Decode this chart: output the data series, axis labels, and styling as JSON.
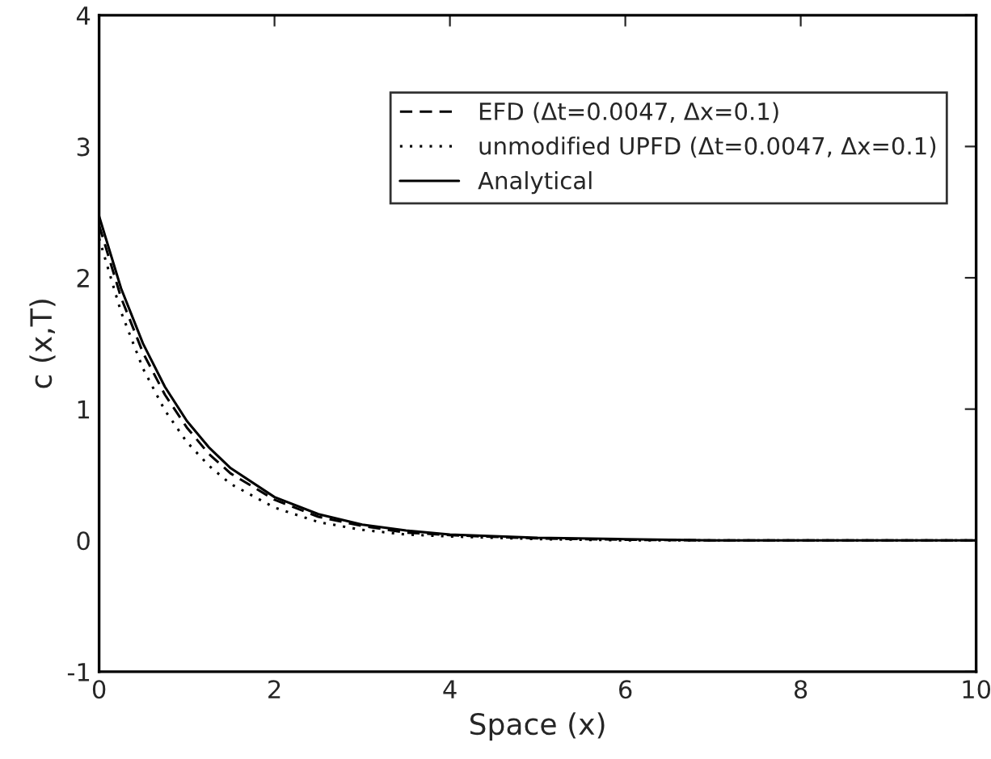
{
  "chart_data": {
    "type": "line",
    "xlabel": "Space (x)",
    "ylabel": "c (x,T)",
    "xlim": [
      0,
      10
    ],
    "ylim": [
      -1,
      4
    ],
    "xticks": [
      0,
      2,
      4,
      6,
      8,
      10
    ],
    "yticks": [
      -1,
      0,
      1,
      2,
      3,
      4
    ],
    "grid": false,
    "legend": "top right",
    "marker": "none",
    "x": [
      0,
      0.25,
      0.5,
      0.75,
      1,
      1.25,
      1.5,
      2,
      2.5,
      3,
      3.5,
      4,
      5,
      6,
      7,
      10
    ],
    "series": [
      {
        "name": "EFD (Δt=0.0047, Δx=0.1)",
        "color": "#000000",
        "line_style": "dashed",
        "values": [
          2.4,
          1.85,
          1.43,
          1.11,
          0.86,
          0.66,
          0.51,
          0.31,
          0.18,
          0.11,
          0.06,
          0.04,
          0.015,
          0.005,
          0,
          0
        ]
      },
      {
        "name": "unmodified UPFD (Δt=0.0047, Δx=0.1)",
        "color": "#000000",
        "line_style": "dotted",
        "values": [
          2.3,
          1.74,
          1.31,
          0.99,
          0.75,
          0.57,
          0.43,
          0.25,
          0.14,
          0.08,
          0.045,
          0.03,
          0.01,
          0,
          0,
          0
        ]
      },
      {
        "name": "Analytical",
        "color": "#000000",
        "line_style": "solid",
        "values": [
          2.47,
          1.92,
          1.5,
          1.17,
          0.91,
          0.71,
          0.55,
          0.33,
          0.2,
          0.12,
          0.075,
          0.045,
          0.02,
          0.01,
          0,
          0
        ]
      }
    ]
  }
}
